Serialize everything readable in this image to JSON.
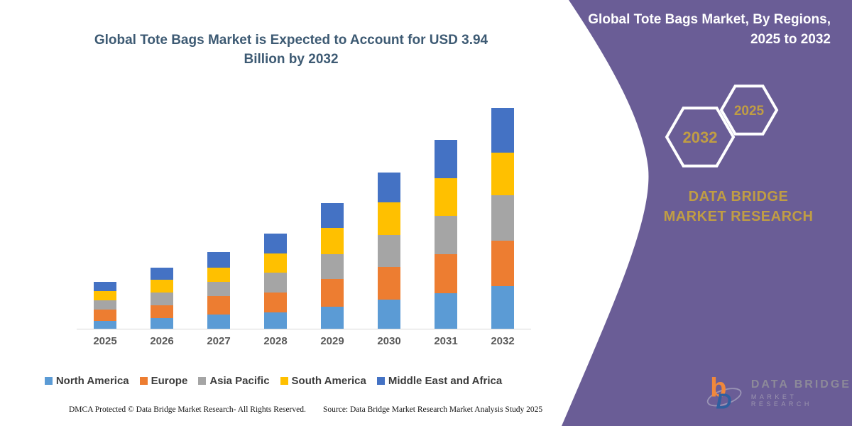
{
  "left_panel": {
    "title_lines": [
      "Global Tote Bags Market is Expected to Account for USD 3.94",
      "Billion by 2032"
    ]
  },
  "chart_data": {
    "type": "bar",
    "stacked": true,
    "title": "Global Tote Bags Market is Expected to Account for USD 3.94 Billion by 2032",
    "unit": "USD Billion",
    "categories": [
      "2025",
      "2026",
      "2027",
      "2028",
      "2029",
      "2030",
      "2031",
      "2032"
    ],
    "series": [
      {
        "name": "North America",
        "color": "#5b9bd5",
        "values": [
          0.14,
          0.19,
          0.26,
          0.29,
          0.4,
          0.52,
          0.64,
          0.76
        ]
      },
      {
        "name": "Europe",
        "color": "#ed7d31",
        "values": [
          0.2,
          0.23,
          0.33,
          0.35,
          0.49,
          0.59,
          0.7,
          0.81
        ]
      },
      {
        "name": "Asia Pacific",
        "color": "#a5a5a5",
        "values": [
          0.16,
          0.23,
          0.26,
          0.35,
          0.45,
          0.57,
          0.68,
          0.81
        ]
      },
      {
        "name": "South America",
        "color": "#ffc000",
        "values": [
          0.16,
          0.23,
          0.26,
          0.34,
          0.47,
          0.59,
          0.67,
          0.76
        ]
      },
      {
        "name": "Middle East and Africa",
        "color": "#4472c4",
        "values": [
          0.17,
          0.22,
          0.28,
          0.35,
          0.44,
          0.53,
          0.69,
          0.8
        ]
      }
    ],
    "totals": [
      0.83,
      1.1,
      1.39,
      1.68,
      2.25,
      2.8,
      3.38,
      3.94
    ],
    "ylim": [
      0,
      3.94
    ],
    "grid": false,
    "y_axis_visible": false,
    "legend_position": "bottom"
  },
  "right_panel": {
    "title_lines": [
      "Global Tote Bags Market, By Regions,",
      "2025 to 2032"
    ],
    "hexagon_large_label": "2032",
    "hexagon_small_label": "2025",
    "brand": "DATA BRIDGE MARKET RESEARCH",
    "colors": {
      "background": "#6a5d96",
      "gold": "#c09d44",
      "hexagon_stroke": "#ffffff"
    }
  },
  "logo": {
    "letter_b": "b",
    "letter_d": "D",
    "name": "DATA BRIDGE",
    "subname": "MARKET RESEARCH",
    "colors": {
      "b": "#f0883c",
      "d": "#2f5f9f"
    }
  },
  "footer": {
    "dmca": "DMCA Protected © Data Bridge Market Research-  All Rights Reserved.",
    "source": "Source: Data Bridge Market Research  Market Analysis Study 2025"
  }
}
